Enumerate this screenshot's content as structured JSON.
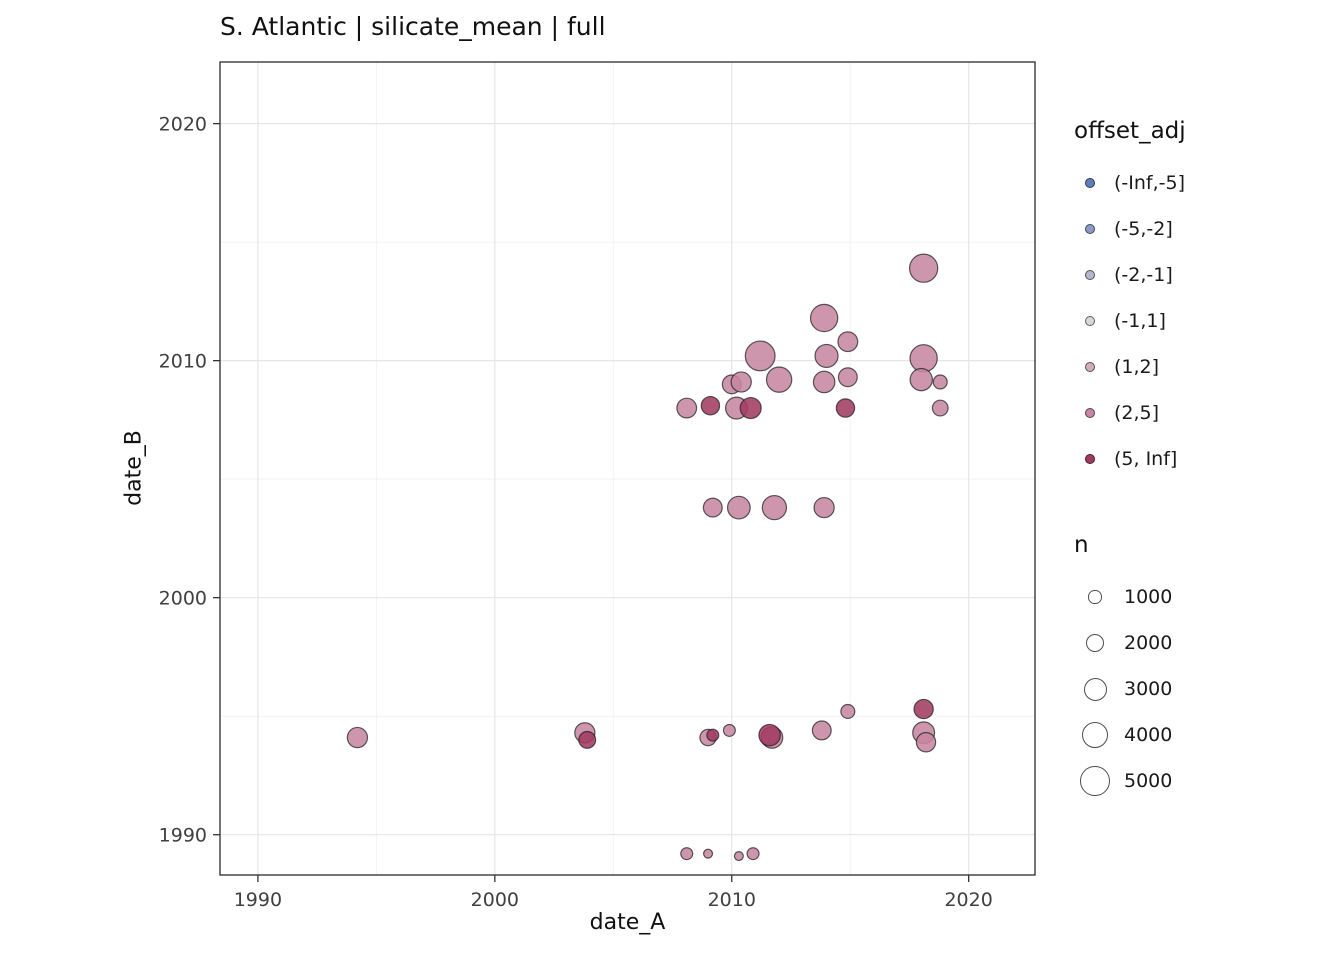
{
  "chart_data": {
    "type": "scatter",
    "title": "S. Atlantic | silicate_mean | full",
    "xlabel": "date_A",
    "ylabel": "date_B",
    "x_ticks": [
      "1990",
      "2000",
      "2010",
      "2020"
    ],
    "x_tick_values": [
      1990,
      2000,
      2010,
      2020
    ],
    "y_ticks": [
      "1990",
      "2000",
      "2010",
      "2020"
    ],
    "y_tick_values": [
      1990,
      2000,
      2010,
      2020
    ],
    "x_minor": [
      1995,
      2005,
      2015
    ],
    "y_minor": [
      1995,
      2005,
      2015
    ],
    "xlim": [
      1988.4,
      2022.8
    ],
    "ylim": [
      1988.3,
      2022.6
    ],
    "grid": true,
    "legend_position": "right",
    "panel_border_color": "#2b2b2b",
    "grid_major_color": "#e6e6e6",
    "grid_minor_color": "#f2f2f2",
    "point_stroke_color": "rgba(25,25,25,0.7)",
    "color_legend": {
      "title": "offset_adj",
      "items": [
        {
          "label": "(-Inf,-5]",
          "color": "#5f7fb8"
        },
        {
          "label": "(-5,-2]",
          "color": "#8d9bc4"
        },
        {
          "label": "(-2,-1]",
          "color": "#b3b7c9"
        },
        {
          "label": "(-1,1]",
          "color": "#d8d6d8"
        },
        {
          "label": "(1,2]",
          "color": "#cfadbd"
        },
        {
          "label": "(2,5]",
          "color": "#c687a1"
        },
        {
          "label": "(5, Inf]",
          "color": "#a23b61"
        }
      ]
    },
    "size_legend": {
      "title": "n",
      "items": [
        {
          "label": "1000",
          "n": 1000
        },
        {
          "label": "2000",
          "n": 2000
        },
        {
          "label": "3000",
          "n": 3000
        },
        {
          "label": "4000",
          "n": 4000
        },
        {
          "label": "5000",
          "n": 5000
        }
      ]
    },
    "points": [
      {
        "x": 2018.1,
        "y": 2013.9,
        "n": 4500,
        "offset_adj": "(2,5]"
      },
      {
        "x": 2013.9,
        "y": 2011.8,
        "n": 4200,
        "offset_adj": "(2,5]"
      },
      {
        "x": 2011.2,
        "y": 2010.2,
        "n": 5000,
        "offset_adj": "(2,5]"
      },
      {
        "x": 2014.0,
        "y": 2010.2,
        "n": 3000,
        "offset_adj": "(2,5]"
      },
      {
        "x": 2014.9,
        "y": 2010.8,
        "n": 2200,
        "offset_adj": "(2,5]"
      },
      {
        "x": 2018.1,
        "y": 2010.1,
        "n": 4200,
        "offset_adj": "(2,5]"
      },
      {
        "x": 2012.0,
        "y": 2009.2,
        "n": 3600,
        "offset_adj": "(2,5]"
      },
      {
        "x": 2010.0,
        "y": 2009.0,
        "n": 2000,
        "offset_adj": "(2,5]"
      },
      {
        "x": 2010.4,
        "y": 2009.1,
        "n": 2300,
        "offset_adj": "(2,5]"
      },
      {
        "x": 2013.9,
        "y": 2009.1,
        "n": 2600,
        "offset_adj": "(2,5]"
      },
      {
        "x": 2014.9,
        "y": 2009.3,
        "n": 2000,
        "offset_adj": "(2,5]"
      },
      {
        "x": 2018.0,
        "y": 2009.2,
        "n": 2800,
        "offset_adj": "(2,5]"
      },
      {
        "x": 2018.8,
        "y": 2009.1,
        "n": 1100,
        "offset_adj": "(2,5]"
      },
      {
        "x": 2008.1,
        "y": 2008.0,
        "n": 2200,
        "offset_adj": "(2,5]"
      },
      {
        "x": 2009.1,
        "y": 2008.1,
        "n": 1900,
        "offset_adj": "(5, Inf]"
      },
      {
        "x": 2010.2,
        "y": 2008.0,
        "n": 2700,
        "offset_adj": "(2,5]"
      },
      {
        "x": 2010.8,
        "y": 2008.0,
        "n": 2500,
        "offset_adj": "(5, Inf]"
      },
      {
        "x": 2014.8,
        "y": 2008.0,
        "n": 1900,
        "offset_adj": "(5, Inf]"
      },
      {
        "x": 2018.8,
        "y": 2008.0,
        "n": 1400,
        "offset_adj": "(2,5]"
      },
      {
        "x": 2009.2,
        "y": 2003.8,
        "n": 2000,
        "offset_adj": "(2,5]"
      },
      {
        "x": 2010.3,
        "y": 2003.8,
        "n": 2900,
        "offset_adj": "(2,5]"
      },
      {
        "x": 2011.8,
        "y": 2003.8,
        "n": 3300,
        "offset_adj": "(2,5]"
      },
      {
        "x": 2013.9,
        "y": 2003.8,
        "n": 2300,
        "offset_adj": "(2,5]"
      },
      {
        "x": 1994.2,
        "y": 1994.1,
        "n": 2300,
        "offset_adj": "(2,5]"
      },
      {
        "x": 2003.8,
        "y": 1994.3,
        "n": 2300,
        "offset_adj": "(2,5]"
      },
      {
        "x": 2003.9,
        "y": 1994.0,
        "n": 1600,
        "offset_adj": "(5, Inf]"
      },
      {
        "x": 2009.0,
        "y": 1994.1,
        "n": 1500,
        "offset_adj": "(2,5]"
      },
      {
        "x": 2009.2,
        "y": 1994.2,
        "n": 800,
        "offset_adj": "(5, Inf]"
      },
      {
        "x": 2009.9,
        "y": 1994.4,
        "n": 800,
        "offset_adj": "(2,5]"
      },
      {
        "x": 2011.7,
        "y": 1994.1,
        "n": 2600,
        "offset_adj": "(2,5]"
      },
      {
        "x": 2011.6,
        "y": 1994.2,
        "n": 2600,
        "offset_adj": "(5, Inf]"
      },
      {
        "x": 2013.8,
        "y": 1994.4,
        "n": 2000,
        "offset_adj": "(2,5]"
      },
      {
        "x": 2014.9,
        "y": 1995.2,
        "n": 1100,
        "offset_adj": "(2,5]"
      },
      {
        "x": 2018.1,
        "y": 1995.3,
        "n": 2100,
        "offset_adj": "(5, Inf]"
      },
      {
        "x": 2018.1,
        "y": 1994.3,
        "n": 2700,
        "offset_adj": "(2,5]"
      },
      {
        "x": 2018.2,
        "y": 1993.9,
        "n": 2100,
        "offset_adj": "(2,5]"
      },
      {
        "x": 2008.1,
        "y": 1989.2,
        "n": 800,
        "offset_adj": "(2,5]"
      },
      {
        "x": 2009.0,
        "y": 1989.2,
        "n": 450,
        "offset_adj": "(2,5]"
      },
      {
        "x": 2010.3,
        "y": 1989.1,
        "n": 450,
        "offset_adj": "(2,5]"
      },
      {
        "x": 2010.9,
        "y": 1989.2,
        "n": 800,
        "offset_adj": "(2,5]"
      }
    ]
  }
}
